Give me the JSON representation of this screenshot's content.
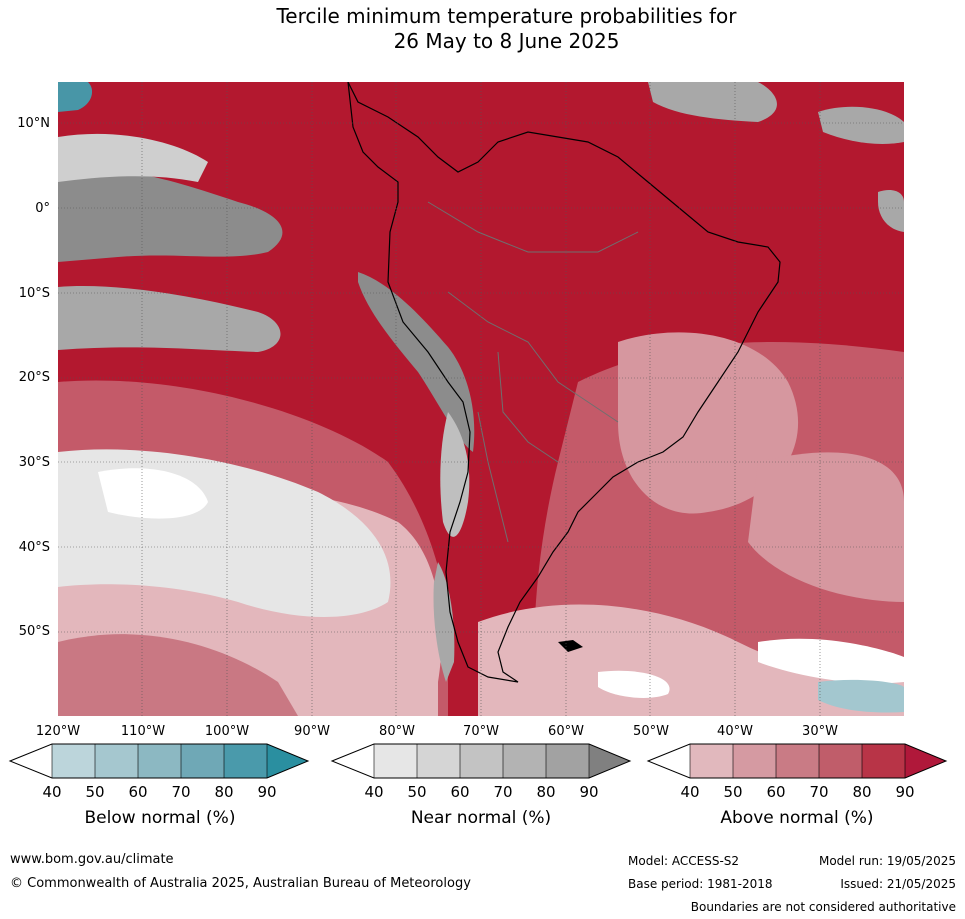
{
  "title": {
    "line1": "Tercile minimum temperature probabilities for",
    "line2": "26 May to 8 June 2025"
  },
  "map": {
    "lat_labels": [
      "10°N",
      "0°",
      "10°S",
      "20°S",
      "30°S",
      "40°S",
      "50°S"
    ],
    "lon_labels": [
      "120°W",
      "110°W",
      "100°W",
      "90°W",
      "80°W",
      "70°W",
      "60°W",
      "50°W",
      "40°W",
      "30°W"
    ],
    "colors": {
      "above": [
        "#e3b7bc",
        "#d6979f",
        "#c97883",
        "#bc5866",
        "#b3293f",
        "#b3182f"
      ],
      "near": [
        "#e6e6e6",
        "#d3d3d3",
        "#bfbfbf",
        "#a8a8a8",
        "#8c8c8c"
      ],
      "below": [
        "#bed6dd",
        "#a3c7cf",
        "#87b6c1",
        "#6aa5b4",
        "#4896a7",
        "#2a8fa0"
      ]
    }
  },
  "colorbars": [
    {
      "title": "Below normal (%)",
      "ticks": [
        "40",
        "50",
        "60",
        "70",
        "80",
        "90"
      ],
      "colors": [
        "#ffffff",
        "#bcd5db",
        "#a5c7cf",
        "#8cb8c2",
        "#6fa8b6",
        "#4a9aab",
        "#2a8fa0"
      ]
    },
    {
      "title": "Near normal (%)",
      "ticks": [
        "40",
        "50",
        "60",
        "70",
        "80",
        "90"
      ],
      "colors": [
        "#ffffff",
        "#e6e6e6",
        "#d5d5d5",
        "#c3c3c3",
        "#b3b3b3",
        "#a2a2a2",
        "#808080"
      ]
    },
    {
      "title": "Above normal (%)",
      "ticks": [
        "40",
        "50",
        "60",
        "70",
        "80",
        "90"
      ],
      "colors": [
        "#ffffff",
        "#e1b8bd",
        "#d59aa2",
        "#c97b85",
        "#c05d6a",
        "#b83447",
        "#b0183a"
      ]
    }
  ],
  "footer": {
    "website": "www.bom.gov.au/climate",
    "copyright": "© Commonwealth of Australia 2025, Australian Bureau of Meteorology",
    "model": "Model: ACCESS-S2",
    "base_period": "Base period: 1981-2018",
    "model_run": "Model run: 19/05/2025",
    "issued": "Issued: 21/05/2025",
    "disclaimer": "Boundaries are not considered authoritative"
  }
}
